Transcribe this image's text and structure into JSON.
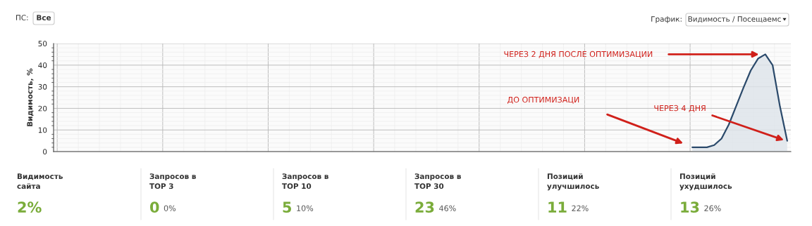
{
  "chart_data": [
    {
      "type": "other",
      "annotations": [
        "ПС:",
        "Все",
        "График:",
        "Видимость / Посещаемс"
      ]
    },
    {
      "type": "area",
      "ylabel": "Видимость, %",
      "categories": [
        null,
        null,
        null,
        null,
        null,
        null,
        null,
        null,
        null,
        null,
        null,
        null,
        null,
        null,
        null,
        null,
        null,
        null,
        null,
        null,
        null,
        null,
        null,
        null,
        null,
        null,
        null,
        null,
        null,
        null,
        null,
        null,
        null,
        null,
        null,
        null,
        null,
        null,
        null,
        null,
        null,
        null,
        null,
        null,
        null,
        null,
        null,
        null,
        null,
        null,
        null,
        null,
        null,
        null,
        null,
        null,
        null,
        null,
        null,
        null,
        null,
        null,
        null,
        null,
        null,
        null,
        null,
        null,
        null,
        null,
        null,
        null,
        null,
        null,
        null,
        null,
        null,
        null,
        null,
        null,
        null,
        null,
        null,
        null,
        null,
        null,
        null,
        null,
        null,
        null,
        null,
        null,
        null,
        null,
        null,
        null,
        null,
        null,
        null,
        null,
        null
      ],
      "series": [
        {
          "color": "#2b4a6b",
          "values": [
            null,
            null,
            null,
            null,
            null,
            null,
            null,
            null,
            null,
            null,
            null,
            null,
            null,
            null,
            null,
            null,
            null,
            null,
            null,
            null,
            null,
            null,
            null,
            null,
            null,
            null,
            null,
            null,
            null,
            null,
            null,
            null,
            null,
            null,
            null,
            null,
            null,
            null,
            null,
            null,
            null,
            null,
            null,
            null,
            null,
            null,
            null,
            null,
            null,
            null,
            null,
            null,
            null,
            null,
            null,
            null,
            null,
            null,
            null,
            null,
            null,
            null,
            null,
            null,
            null,
            null,
            null,
            null,
            null,
            null,
            null,
            null,
            null,
            null,
            null,
            null,
            null,
            null,
            null,
            null,
            null,
            null,
            null,
            null,
            null,
            null,
            null,
            2,
            2,
            2,
            3,
            6,
            12.5,
            21,
            29.5,
            37.5,
            43,
            45,
            40,
            21,
            5
          ]
        }
      ],
      "ylim": [
        0,
        50
      ],
      "yticks": [
        0,
        10,
        20,
        30,
        40,
        50
      ],
      "grid": true,
      "tick_labels": "y",
      "legend": false,
      "annotations": [
        "ЧЕРЕЗ 2 ДНЯ ПОСЛЕ ОПТИМИЗАЦИИ",
        "ДО ОПТИМИЗАЦИ",
        "ЧЕРЕЗ 4 ДНЯ"
      ]
    },
    {
      "type": "other",
      "categories": [
        "Видимость\nсайта",
        "Запросов в\nTOP 3",
        "Запросов в\nTOP 10",
        "Запросов в\nTOP 30",
        "Позиций\nулучшилось",
        "Позиций\nухудшилось"
      ],
      "series": [
        {
          "color": "#7aac3a",
          "values": [
            2,
            0,
            5,
            23,
            11,
            13
          ],
          "value_labels": [
            "2%",
            "0",
            "5",
            "23",
            "11",
            "13"
          ]
        },
        {
          "color": "#555555",
          "values": [
            null,
            0,
            10,
            46,
            22,
            26
          ],
          "value_labels": [
            null,
            "0%",
            "10%",
            "46%",
            "22%",
            "26%"
          ]
        }
      ]
    }
  ]
}
